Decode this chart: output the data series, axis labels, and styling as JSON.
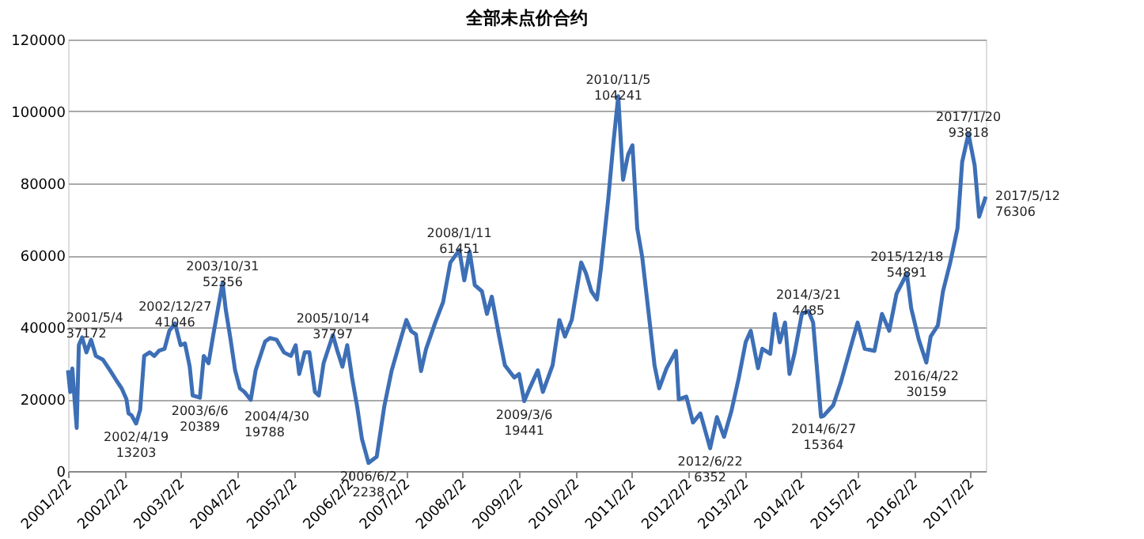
{
  "chart_data": {
    "type": "line",
    "title": "全部未点价合约",
    "xlim": [
      "2001-02-02",
      "2017-05-12"
    ],
    "xticks": [
      {
        "value": "2001-02-02",
        "label": "2001/2/2"
      },
      {
        "value": "2002-02-02",
        "label": "2002/2/2"
      },
      {
        "value": "2003-02-02",
        "label": "2003/2/2"
      },
      {
        "value": "2004-02-02",
        "label": "2004/2/2"
      },
      {
        "value": "2005-02-02",
        "label": "2005/2/2"
      },
      {
        "value": "2006-02-02",
        "label": "2006/2/2"
      },
      {
        "value": "2007-02-02",
        "label": "2007/2/2"
      },
      {
        "value": "2008-02-02",
        "label": "2008/2/2"
      },
      {
        "value": "2009-02-02",
        "label": "2009/2/2"
      },
      {
        "value": "2010-02-02",
        "label": "2010/2/2"
      },
      {
        "value": "2011-02-02",
        "label": "2011/2/2"
      },
      {
        "value": "2012-02-02",
        "label": "2012/2/2"
      },
      {
        "value": "2013-02-02",
        "label": "2013/2/2"
      },
      {
        "value": "2014-02-02",
        "label": "2014/2/2"
      },
      {
        "value": "2015-02-02",
        "label": "2015/2/2"
      },
      {
        "value": "2016-02-02",
        "label": "2016/2/2"
      },
      {
        "value": "2017-02-02",
        "label": "2017/2/2"
      }
    ],
    "ylim": [
      0,
      120000
    ],
    "yticks": [
      0,
      20000,
      40000,
      60000,
      80000,
      100000,
      120000
    ],
    "grid": "y",
    "marker": "none",
    "line_style": "solid",
    "series": [
      {
        "color": "#3d6fb6",
        "x": [
          "2001-02-02",
          "2001-02-16",
          "2001-03-02",
          "2001-03-16",
          "2001-03-30",
          "2001-04-13",
          "2001-05-04",
          "2001-06-01",
          "2001-07-01",
          "2001-08-01",
          "2001-09-15",
          "2001-11-01",
          "2001-12-15",
          "2002-01-15",
          "2002-02-15",
          "2002-03-01",
          "2002-03-20",
          "2002-04-19",
          "2002-05-15",
          "2002-06-10",
          "2002-07-15",
          "2002-08-15",
          "2002-09-15",
          "2002-10-20",
          "2002-11-20",
          "2002-12-27",
          "2003-02-01",
          "2003-03-01",
          "2003-04-01",
          "2003-04-20",
          "2003-06-06",
          "2003-07-01",
          "2003-08-01",
          "2003-09-01",
          "2003-10-31",
          "2003-11-20",
          "2003-12-20",
          "2004-01-20",
          "2004-02-20",
          "2004-03-20",
          "2004-04-30",
          "2004-06-01",
          "2004-07-01",
          "2004-08-01",
          "2004-09-01",
          "2004-10-15",
          "2004-12-01",
          "2005-01-15",
          "2005-02-15",
          "2005-03-10",
          "2005-04-15",
          "2005-05-15",
          "2005-06-20",
          "2005-07-15",
          "2005-08-15",
          "2005-10-14",
          "2005-11-15",
          "2005-12-15",
          "2006-01-15",
          "2006-02-15",
          "2006-03-20",
          "2006-04-20",
          "2006-06-02",
          "2006-07-25",
          "2006-09-12",
          "2006-10-30",
          "2007-01-01",
          "2007-02-02",
          "2007-03-05",
          "2007-04-05",
          "2007-05-08",
          "2007-06-10",
          "2007-08-08",
          "2007-09-28",
          "2007-11-14",
          "2008-01-11",
          "2008-02-12",
          "2008-03-18",
          "2008-04-20",
          "2008-06-05",
          "2008-07-08",
          "2008-08-08",
          "2008-09-25",
          "2008-11-01",
          "2009-01-01",
          "2009-02-01",
          "2009-03-06",
          "2009-04-10",
          "2009-06-02",
          "2009-07-05",
          "2009-09-06",
          "2009-10-20",
          "2009-11-25",
          "2010-01-08",
          "2010-03-10",
          "2010-04-10",
          "2010-05-15",
          "2010-06-20",
          "2010-07-16",
          "2010-09-01",
          "2010-10-05",
          "2010-11-05",
          "2010-12-06",
          "2011-01-08",
          "2011-02-05",
          "2011-03-08",
          "2011-04-09",
          "2011-05-26",
          "2011-06-28",
          "2011-07-28",
          "2011-09-14",
          "2011-11-14",
          "2011-12-02",
          "2012-01-20",
          "2012-03-03",
          "2012-04-20",
          "2012-06-22",
          "2012-08-05",
          "2012-09-20",
          "2012-11-07",
          "2012-12-25",
          "2013-02-07",
          "2013-03-12",
          "2013-04-28",
          "2013-05-26",
          "2013-07-16",
          "2013-08-15",
          "2013-09-16",
          "2013-10-20",
          "2013-11-18",
          "2013-12-20",
          "2014-02-06",
          "2014-03-21",
          "2014-04-20",
          "2014-06-10",
          "2014-06-27",
          "2014-08-28",
          "2014-10-16",
          "2014-12-16",
          "2015-02-02",
          "2015-03-20",
          "2015-05-22",
          "2015-07-10",
          "2015-08-26",
          "2015-10-12",
          "2015-12-18",
          "2016-01-15",
          "2016-03-04",
          "2016-04-22",
          "2016-05-20",
          "2016-07-06",
          "2016-08-08",
          "2016-09-24",
          "2016-11-10",
          "2016-12-10",
          "2017-01-20",
          "2017-03-01",
          "2017-03-30",
          "2017-05-12"
        ],
        "values": [
          28000,
          22000,
          28500,
          20000,
          12000,
          35000,
          37172,
          33000,
          36500,
          32000,
          31000,
          28000,
          25000,
          23000,
          20000,
          16000,
          15500,
          13203,
          17000,
          32000,
          33000,
          32000,
          33500,
          34000,
          39000,
          41046,
          35000,
          35500,
          29000,
          21000,
          20389,
          32000,
          30000,
          38000,
          52356,
          45000,
          37000,
          28000,
          23000,
          22000,
          19788,
          28000,
          32000,
          36000,
          37000,
          36500,
          33000,
          32000,
          35000,
          27000,
          33000,
          33000,
          22000,
          21000,
          30000,
          37797,
          33000,
          29000,
          35000,
          26000,
          18000,
          9000,
          2238,
          4000,
          18000,
          28000,
          37400,
          42000,
          38900,
          38000,
          27800,
          34000,
          41300,
          47000,
          58000,
          61451,
          53000,
          61000,
          51700,
          50000,
          43700,
          48500,
          37400,
          29400,
          26000,
          27000,
          19441,
          23000,
          28000,
          22000,
          29400,
          42000,
          37400,
          42000,
          58000,
          55000,
          50000,
          47700,
          56400,
          75500,
          91400,
          104241,
          81000,
          88000,
          90600,
          67500,
          59600,
          42000,
          29400,
          23000,
          28600,
          33400,
          19900,
          20700,
          13500,
          16000,
          6352,
          15000,
          9500,
          16700,
          26000,
          35800,
          39000,
          28600,
          34000,
          32600,
          43700,
          35800,
          41300,
          27000,
          32600,
          43700,
          44500,
          41300,
          15100,
          15364,
          18300,
          24600,
          34000,
          41300,
          34000,
          33400,
          43700,
          39000,
          49300,
          54891,
          45300,
          36600,
          30159,
          37400,
          40500,
          50000,
          58000,
          67500,
          85900,
          93818,
          85000,
          70700,
          76306
        ]
      }
    ],
    "annotations": [
      {
        "text": "2001/5/4\n37172",
        "x": "2001-05-04",
        "y": 37172
      },
      {
        "text": "2002/4/19\n13203",
        "x": "2002-04-19",
        "y": 13203
      },
      {
        "text": "2002/12/27\n41046",
        "x": "2002-12-27",
        "y": 41046
      },
      {
        "text": "2003/6/6\n20389",
        "x": "2003-06-06",
        "y": 20389
      },
      {
        "text": "2003/10/31\n52356",
        "x": "2003-10-31",
        "y": 52356
      },
      {
        "text": "2004/4/30\n19788",
        "x": "2004-04-30",
        "y": 19788
      },
      {
        "text": "2005/10/14\n37797",
        "x": "2005-10-14",
        "y": 37797
      },
      {
        "text": "2006/6/2\n2238",
        "x": "2006-06-02",
        "y": 2238
      },
      {
        "text": "2008/1/11\n61451",
        "x": "2008-01-11",
        "y": 61451
      },
      {
        "text": "2009/3/6\n19441",
        "x": "2009-03-06",
        "y": 19441
      },
      {
        "text": "2010/11/5\n104241",
        "x": "2010-11-05",
        "y": 104241
      },
      {
        "text": "2012/6/22\n6352",
        "x": "2012-06-22",
        "y": 6352
      },
      {
        "text": "2014/3/21\n4485",
        "x": "2014-03-21",
        "y": 44500
      },
      {
        "text": "2014/6/27\n15364",
        "x": "2014-06-27",
        "y": 15364
      },
      {
        "text": "2015/12/18\n54891",
        "x": "2015-12-18",
        "y": 54891
      },
      {
        "text": "2016/4/22\n30159",
        "x": "2016-04-22",
        "y": 30159
      },
      {
        "text": "2017/1/20\n93818",
        "x": "2017-01-20",
        "y": 93818
      },
      {
        "text": "2017/5/12\n76306",
        "x": "2017-05-12",
        "y": 76306
      }
    ]
  }
}
